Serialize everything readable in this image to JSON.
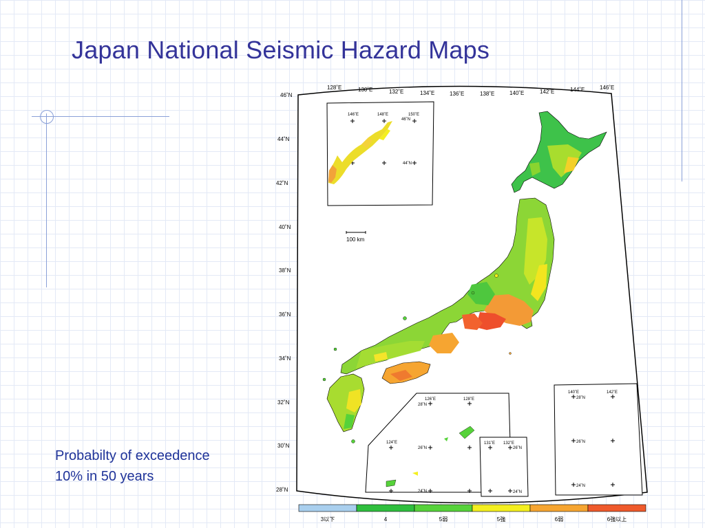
{
  "slide": {
    "title": "Japan National Seismic Hazard Maps",
    "caption_line1": "Probabilty of exceedence",
    "caption_line2": "10% in 50 years"
  },
  "map": {
    "top_lon_labels": [
      "128˚E",
      "130˚E",
      "132˚E",
      "134˚E",
      "136˚E",
      "138˚E",
      "140˚E",
      "142˚E",
      "144˚E",
      "146˚E"
    ],
    "left_lat_labels": [
      "46˚N",
      "44˚N",
      "42˚N",
      "40˚N",
      "38˚N",
      "36˚N",
      "34˚N",
      "32˚N",
      "30˚N",
      "28˚N"
    ],
    "scale_label": "100 km",
    "inset_ne": {
      "lon": [
        "146˚E",
        "148˚E",
        "150˚E"
      ],
      "lat": [
        "46˚N",
        "44˚N"
      ]
    },
    "inset_ryukyu": {
      "lon": [
        "126˚E",
        "128˚E",
        "124˚E"
      ],
      "lat": [
        "28˚N",
        "26˚N",
        "24˚N"
      ]
    },
    "inset_daito": {
      "lon": [
        "131˚E",
        "132˚E"
      ],
      "lat": [
        "26˚N",
        "24˚N"
      ]
    },
    "inset_ogasawara": {
      "lon": [
        "140˚E",
        "142˚E"
      ],
      "lat": [
        "28˚N",
        "26˚N",
        "24˚N"
      ]
    },
    "legend": [
      {
        "label": "3以下",
        "color": "#a9cfee"
      },
      {
        "label": "4",
        "color": "#2fbf3e"
      },
      {
        "label": "5弱",
        "color": "#56d23a"
      },
      {
        "label": "5強",
        "color": "#f4ef1f"
      },
      {
        "label": "6弱",
        "color": "#f6a531"
      },
      {
        "label": "6強以上",
        "color": "#ef5a2c"
      }
    ]
  },
  "colors": {
    "title": "#333399",
    "caption": "#1f3399",
    "accent_line": "#8aa0d8"
  }
}
